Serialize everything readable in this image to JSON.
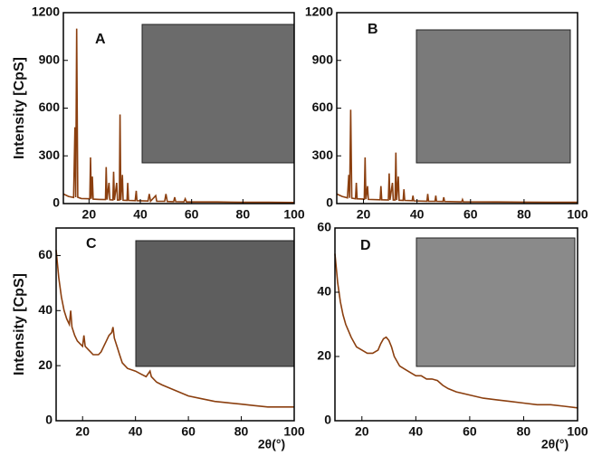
{
  "chart_data": [
    {
      "type": "line",
      "title": "A",
      "ylabel": "Intensity [CpS]",
      "xlim": [
        10,
        100
      ],
      "ylim": [
        0,
        1200
      ],
      "xticks": [
        20,
        40,
        60,
        80,
        100
      ],
      "yticks": [
        0,
        300,
        600,
        900,
        1200
      ],
      "color": "#8b3f0f",
      "x": [
        10,
        12,
        14,
        14.5,
        14.8,
        15.2,
        15.6,
        17,
        20.3,
        20.6,
        20.9,
        21.3,
        21.6,
        24,
        26.4,
        26.7,
        27,
        27.8,
        28.1,
        29.3,
        29.6,
        29.9,
        30.8,
        31.1,
        31.8,
        32.1,
        32.4,
        33,
        33.3,
        34.8,
        35.1,
        35.4,
        38,
        38.4,
        38.7,
        43,
        43.5,
        44,
        46,
        46.4,
        49.5,
        50,
        50.5,
        53,
        53.4,
        53.8,
        57,
        57.5,
        58,
        70,
        80,
        90,
        100
      ],
      "values": [
        60,
        45,
        38,
        480,
        40,
        1100,
        40,
        32,
        30,
        290,
        30,
        170,
        28,
        26,
        25,
        230,
        25,
        130,
        24,
        23,
        200,
        23,
        130,
        22,
        22,
        560,
        22,
        180,
        21,
        20,
        130,
        20,
        18,
        80,
        18,
        16,
        60,
        15,
        50,
        14,
        14,
        60,
        13,
        12,
        40,
        12,
        11,
        30,
        10,
        10,
        8,
        8,
        7
      ]
    },
    {
      "type": "line",
      "title": "B",
      "xlim": [
        10,
        100
      ],
      "ylim": [
        0,
        1200
      ],
      "xticks": [
        20,
        40,
        60,
        80,
        100
      ],
      "yticks": [
        0,
        300,
        600,
        900,
        1200
      ],
      "color": "#8b3f0f",
      "x": [
        10,
        12,
        14,
        14.5,
        14.8,
        15.2,
        15.6,
        17,
        17.3,
        17.6,
        20.3,
        20.6,
        20.9,
        21.5,
        21.8,
        26.2,
        26.5,
        26.8,
        29.3,
        29.6,
        29.9,
        30.8,
        31.1,
        31.8,
        32.1,
        32.4,
        33,
        33.3,
        34.8,
        35.1,
        35.4,
        38.2,
        38.5,
        38.8,
        43.7,
        44,
        44.3,
        46.7,
        47,
        47.3,
        49.7,
        50,
        50.3,
        56.7,
        57,
        57.3,
        70,
        80,
        90,
        100
      ],
      "values": [
        60,
        45,
        36,
        180,
        36,
        590,
        34,
        30,
        130,
        30,
        28,
        290,
        28,
        110,
        26,
        24,
        110,
        24,
        23,
        190,
        23,
        130,
        22,
        22,
        320,
        22,
        170,
        21,
        20,
        90,
        20,
        18,
        50,
        17,
        15,
        60,
        15,
        14,
        50,
        14,
        13,
        40,
        13,
        11,
        25,
        11,
        10,
        9,
        8,
        8
      ]
    },
    {
      "type": "line",
      "title": "C",
      "ylabel": "Intensity [CpS]",
      "xlabel": "2θ(°)",
      "xlim": [
        10,
        100
      ],
      "ylim": [
        0,
        70
      ],
      "xticks": [
        20,
        40,
        60,
        80,
        100
      ],
      "yticks": [
        0,
        20,
        40,
        60
      ],
      "color": "#8b3f0f",
      "x": [
        10,
        11,
        12,
        13,
        14,
        15,
        15.5,
        16,
        17,
        18,
        19,
        20,
        20.5,
        21,
        22,
        23,
        24,
        25,
        26,
        27,
        28,
        29,
        30,
        31,
        31.5,
        32,
        33,
        34,
        35,
        37,
        40,
        42,
        44,
        45.5,
        46,
        48,
        50,
        55,
        60,
        65,
        70,
        75,
        80,
        85,
        90,
        95,
        100
      ],
      "values": [
        62,
        52,
        45,
        40,
        37,
        35,
        40,
        34,
        31,
        29,
        28,
        27,
        31,
        27,
        26,
        25,
        24,
        24,
        24,
        25,
        27,
        29,
        31,
        32,
        34,
        30,
        27,
        24,
        21,
        19,
        18,
        17,
        16,
        18,
        16,
        14,
        13,
        11,
        9,
        8,
        7,
        6.5,
        6,
        5.5,
        5,
        5,
        5
      ]
    },
    {
      "type": "line",
      "title": "D",
      "xlabel": "2θ(°)",
      "xlim": [
        10,
        100
      ],
      "ylim": [
        0,
        60
      ],
      "xticks": [
        20,
        40,
        60,
        80,
        100
      ],
      "yticks": [
        0,
        20,
        40,
        60
      ],
      "color": "#8b3f0f",
      "x": [
        10,
        11,
        12,
        13,
        14,
        15,
        16,
        18,
        20,
        22,
        24,
        26,
        27,
        28,
        29,
        30,
        31,
        32,
        34,
        36,
        38,
        40,
        42,
        44,
        46,
        48,
        50,
        52,
        55,
        60,
        65,
        70,
        75,
        80,
        85,
        90,
        95,
        100
      ],
      "values": [
        52,
        43,
        37,
        33,
        30,
        28,
        26,
        23,
        22,
        21,
        21,
        22,
        24,
        25.5,
        26,
        25,
        23,
        20,
        17,
        16,
        15,
        14,
        14,
        13,
        13,
        12.5,
        11,
        10,
        9,
        8,
        7,
        6.5,
        6,
        5.5,
        5,
        5,
        4.5,
        4
      ]
    }
  ]
}
